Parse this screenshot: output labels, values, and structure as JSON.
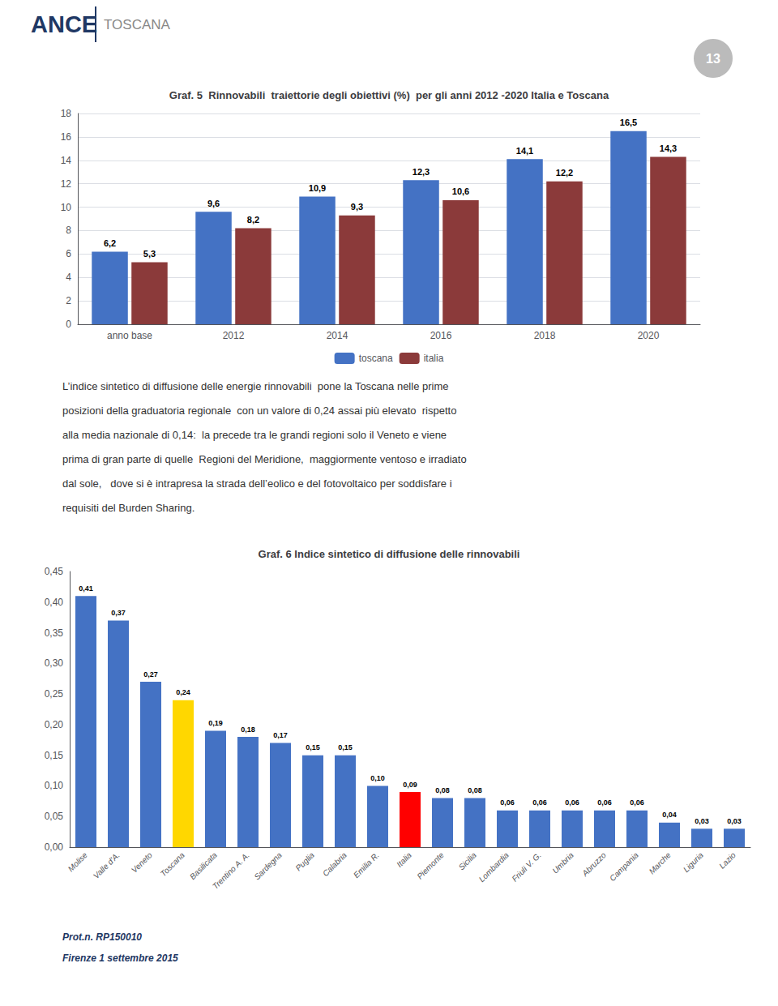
{
  "chart_data": [
    {
      "type": "bar",
      "title": "Graf. 5  Rinnovabili  traiettorie degli obiettivi (%)  per gli anni 2012 -2020 Italia e Toscana",
      "categories": [
        "anno base",
        "2012",
        "2014",
        "2016",
        "2018",
        "2020"
      ],
      "series": [
        {
          "name": "toscana",
          "color": "#4472C4",
          "values": [
            6.2,
            9.6,
            10.9,
            12.3,
            14.1,
            16.5
          ],
          "value_labels": [
            "6,2",
            "9,6",
            "10,9",
            "12,3",
            "14,1",
            "16,5"
          ]
        },
        {
          "name": "italia",
          "color": "#8B3A3A",
          "values": [
            5.3,
            8.2,
            9.3,
            10.6,
            12.2,
            14.3
          ],
          "value_labels": [
            "5,3",
            "8,2",
            "9,3",
            "10,6",
            "12,2",
            "14,3"
          ]
        }
      ],
      "ylim": [
        0,
        18
      ],
      "yticks": [
        0,
        2,
        4,
        6,
        8,
        10,
        12,
        14,
        16,
        18
      ],
      "grid": true,
      "legend": "bottom",
      "data_labels": true,
      "annotations": [
        "ANCE",
        "TOSCANA",
        "13"
      ]
    },
    {
      "type": "bar",
      "title": "Graf. 6 Indice sintetico di diffusione delle rinnovabili",
      "categories": [
        "Molise",
        "Valle d'A.",
        "Veneto",
        "Toscana",
        "Basilicata",
        "Trentino A. A.",
        "Sardegna",
        "Puglia",
        "Calabria",
        "Emilia R.",
        "Italia",
        "Piemonte",
        "Sicilia",
        "Lombardia",
        "Friuli V. G.",
        "Umbria",
        "Abruzzo",
        "Campania",
        "Marche",
        "Liguria",
        "Lazio"
      ],
      "values": [
        0.41,
        0.37,
        0.27,
        0.24,
        0.19,
        0.18,
        0.17,
        0.15,
        0.15,
        0.1,
        0.09,
        0.08,
        0.08,
        0.06,
        0.06,
        0.06,
        0.06,
        0.06,
        0.04,
        0.03,
        0.03
      ],
      "value_labels": [
        "0,41",
        "0,37",
        "0,27",
        "0,24",
        "0,19",
        "0,18",
        "0,17",
        "0,15",
        "0,15",
        "0,10",
        "0,09",
        "0,08",
        "0,08",
        "0,06",
        "0,06",
        "0,06",
        "0,06",
        "0,06",
        "0,04",
        "0,03",
        "0,03"
      ],
      "colors": [
        "#4472C4",
        "#4472C4",
        "#4472C4",
        "#FFD700",
        "#4472C4",
        "#4472C4",
        "#4472C4",
        "#4472C4",
        "#4472C4",
        "#4472C4",
        "#FF0000",
        "#4472C4",
        "#4472C4",
        "#4472C4",
        "#4472C4",
        "#4472C4",
        "#4472C4",
        "#4472C4",
        "#4472C4",
        "#4472C4",
        "#4472C4"
      ],
      "ylim": [
        0,
        0.45
      ],
      "yticks": [
        {
          "value": 0.0,
          "label": "0,00"
        },
        {
          "value": 0.05,
          "label": "0,05"
        },
        {
          "value": 0.1,
          "label": "0,10"
        },
        {
          "value": 0.15,
          "label": "0,15"
        },
        {
          "value": 0.2,
          "label": "0,20"
        },
        {
          "value": 0.25,
          "label": "0,25"
        },
        {
          "value": 0.3,
          "label": "0,30"
        },
        {
          "value": 0.35,
          "label": "0,35"
        },
        {
          "value": 0.4,
          "label": "0,40"
        },
        {
          "value": 0.45,
          "label": "0,45"
        }
      ],
      "grid": false,
      "data_labels": true,
      "annotations": [
        "L’indice sintetico di diffusione delle energie rinnovabili  pone la Toscana nelle prime",
        "posizioni della graduatoria regionale  con un valore di 0,24 assai più elevato  rispetto",
        "alla media nazionale di 0,14:  la precede tra le grandi regioni solo il Veneto e viene",
        "prima di gran parte di quelle  Regioni del Meridione,  maggiormente ventoso e irradiato",
        "dal sole,   dove si è intrapresa la strada dell’eolico e del fotovoltaico per soddisfare i",
        "requisiti del Burden Sharing.",
        "Prot.n. RP150010",
        "Firenze 1 settembre 2015"
      ]
    }
  ]
}
